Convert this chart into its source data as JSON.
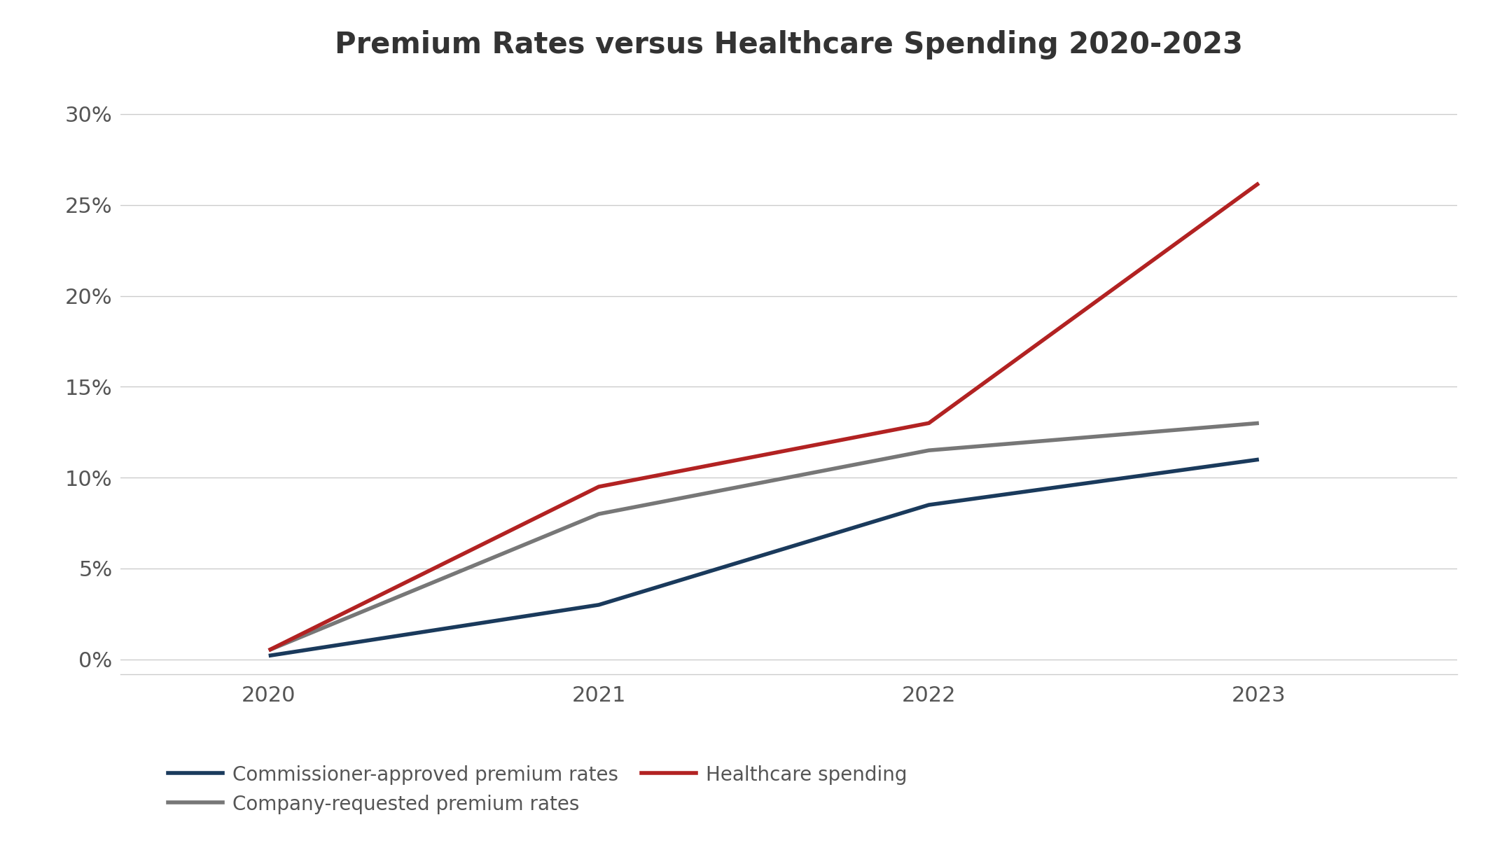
{
  "title": "Premium Rates versus Healthcare Spending 2020-2023",
  "title_fontsize": 30,
  "title_fontweight": "bold",
  "years": [
    2020,
    2021,
    2022,
    2023
  ],
  "series": [
    {
      "label": "Commissioner-approved premium rates",
      "values": [
        0.002,
        0.03,
        0.085,
        0.11
      ],
      "color": "#1a3a5c",
      "linewidth": 4.0
    },
    {
      "label": "Company-requested premium rates",
      "values": [
        0.005,
        0.08,
        0.115,
        0.13
      ],
      "color": "#777777",
      "linewidth": 4.0
    },
    {
      "label": "Healthcare spending",
      "values": [
        0.005,
        0.095,
        0.13,
        0.262
      ],
      "color": "#b22222",
      "linewidth": 4.0
    }
  ],
  "ylim": [
    -0.008,
    0.32
  ],
  "yticks": [
    0.0,
    0.05,
    0.1,
    0.15,
    0.2,
    0.25,
    0.3
  ],
  "ytick_labels": [
    "0%",
    "5%",
    "10%",
    "15%",
    "20%",
    "25%",
    "30%"
  ],
  "xticks": [
    2020,
    2021,
    2022,
    2023
  ],
  "background_color": "#ffffff",
  "grid_color": "#cccccc",
  "tick_fontsize": 22,
  "legend_fontsize": 20,
  "figsize": [
    21.45,
    12.34
  ],
  "dpi": 100,
  "title_color": "#333333",
  "tick_color": "#555555"
}
